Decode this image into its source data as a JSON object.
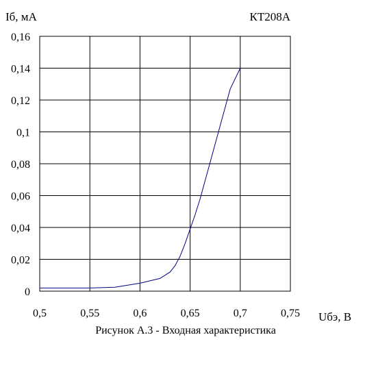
{
  "chart_data": {
    "type": "line",
    "title": "КТ208А",
    "xlabel": "Uбэ, В",
    "ylabel": "Iб, мА",
    "caption": "Рисунок А.3 - Входная характеристика",
    "xlim": [
      0.5,
      0.75
    ],
    "ylim": [
      0,
      0.16
    ],
    "grid": true,
    "x_ticks": [
      0.5,
      0.55,
      0.6,
      0.65,
      0.7,
      0.75
    ],
    "y_ticks": [
      0,
      0.02,
      0.04,
      0.06,
      0.08,
      0.1,
      0.12,
      0.14,
      0.16
    ],
    "x_tick_labels": [
      "0,5",
      "0,55",
      "0,6",
      "0,65",
      "0,7",
      "0,75"
    ],
    "y_tick_labels": [
      "0",
      "0,02",
      "0,04",
      "0,06",
      "0,08",
      "0,1",
      "0,12",
      "0,14",
      "0,16"
    ],
    "line_color": "#000080",
    "series": [
      {
        "x": [
          0.5,
          0.55,
          0.575,
          0.6,
          0.62,
          0.63,
          0.635,
          0.64,
          0.645,
          0.65,
          0.655,
          0.66,
          0.67,
          0.68,
          0.69,
          0.7
        ],
        "y": [
          0.002,
          0.002,
          0.0025,
          0.005,
          0.008,
          0.012,
          0.016,
          0.022,
          0.03,
          0.039,
          0.048,
          0.058,
          0.081,
          0.104,
          0.127,
          0.14
        ]
      }
    ]
  }
}
